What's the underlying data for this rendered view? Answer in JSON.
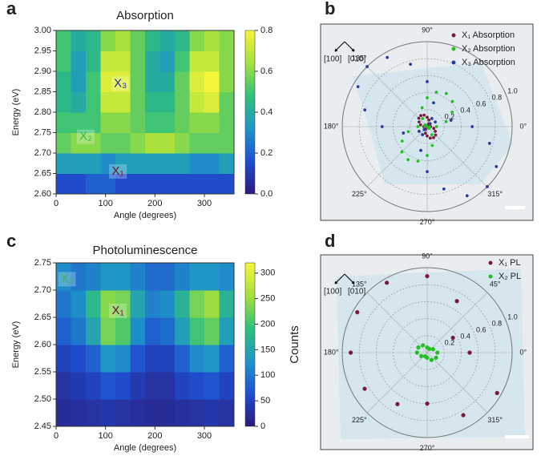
{
  "chart_data": [
    {
      "type": "heatmap",
      "panel_label": "a",
      "title": "Absorption",
      "xlabel": "Angle (degrees)",
      "ylabel": "Energy (eV)",
      "x": [
        15,
        45,
        75,
        105,
        135,
        165,
        195,
        225,
        255,
        285,
        315,
        345
      ],
      "y": [
        2.625,
        2.675,
        2.725,
        2.775,
        2.825,
        2.875,
        2.925,
        2.975
      ],
      "values": [
        [
          0.15,
          0.15,
          0.2,
          0.2,
          0.15,
          0.15,
          0.15,
          0.15,
          0.15,
          0.15,
          0.15,
          0.15
        ],
        [
          0.35,
          0.35,
          0.35,
          0.3,
          0.35,
          0.35,
          0.35,
          0.35,
          0.35,
          0.3,
          0.3,
          0.35
        ],
        [
          0.55,
          0.6,
          0.6,
          0.55,
          0.55,
          0.6,
          0.65,
          0.65,
          0.6,
          0.55,
          0.55,
          0.55
        ],
        [
          0.5,
          0.5,
          0.5,
          0.6,
          0.6,
          0.55,
          0.5,
          0.5,
          0.55,
          0.6,
          0.6,
          0.55
        ],
        [
          0.45,
          0.4,
          0.5,
          0.7,
          0.7,
          0.55,
          0.45,
          0.45,
          0.55,
          0.7,
          0.75,
          0.55
        ],
        [
          0.45,
          0.35,
          0.5,
          0.75,
          0.75,
          0.55,
          0.4,
          0.4,
          0.55,
          0.75,
          0.8,
          0.6
        ],
        [
          0.5,
          0.35,
          0.45,
          0.7,
          0.7,
          0.55,
          0.4,
          0.35,
          0.5,
          0.7,
          0.7,
          0.6
        ],
        [
          0.5,
          0.4,
          0.45,
          0.6,
          0.65,
          0.55,
          0.45,
          0.4,
          0.45,
          0.6,
          0.65,
          0.6
        ]
      ],
      "xlim": [
        0,
        360
      ],
      "xticks": [
        0,
        100,
        200,
        300
      ],
      "ylim": [
        2.6,
        3.0
      ],
      "yticks": [
        {
          "value": 2.6,
          "label": "2.60"
        },
        {
          "value": 2.65,
          "label": "2.65"
        },
        {
          "value": 2.7,
          "label": "2.70"
        },
        {
          "value": 2.75,
          "label": "2.75"
        },
        {
          "value": 2.8,
          "label": "2.80"
        },
        {
          "value": 2.85,
          "label": "2.85"
        },
        {
          "value": 2.9,
          "label": "2.90"
        },
        {
          "value": 2.95,
          "label": "2.95"
        },
        {
          "value": 3.0,
          "label": "3.00"
        }
      ],
      "colormap": [
        "#2b1a7a",
        "#1f4fd1",
        "#1f96c8",
        "#2fc07a",
        "#a6e03c",
        "#f5f53a"
      ],
      "clim": [
        0,
        0.8
      ],
      "cticks": [
        {
          "value": 0,
          "label": "0.0"
        },
        0.2,
        0.4,
        0.6,
        0.8
      ],
      "annotations": [
        {
          "text": "X₃",
          "x": 130,
          "y": 2.87,
          "color": "#2a2a8a"
        },
        {
          "text": "X₂",
          "x": 60,
          "y": 2.74,
          "color": "#3cb84a"
        },
        {
          "text": "X₁",
          "x": 125,
          "y": 2.655,
          "color": "#6a1030"
        }
      ]
    },
    {
      "type": "polar",
      "panel_label": "b",
      "direction_labels": [
        "[100]",
        "[010]"
      ],
      "theta": [
        0,
        15,
        30,
        45,
        60,
        75,
        90,
        105,
        120,
        135,
        150,
        165,
        180,
        195,
        210,
        225,
        240,
        255,
        270,
        285,
        300,
        315,
        330,
        345
      ],
      "series": [
        {
          "name": "X₁ Absorption",
          "color": "#7a1a3a",
          "values": [
            0.04,
            0.01,
            0,
            0.01,
            0.04,
            0.08,
            0.11,
            0.14,
            0.15,
            0.14,
            0.11,
            0.08,
            0.04,
            0.01,
            0,
            0.01,
            0.04,
            0.08,
            0.11,
            0.14,
            0.15,
            0.14,
            0.11,
            0.08
          ]
        },
        {
          "name": "X₂ Absorption",
          "color": "#22c022",
          "values": [
            0.11,
            0.23,
            0.34,
            0.42,
            0.45,
            0.42,
            0.34,
            0.23,
            0.11,
            0.03,
            0,
            0.03,
            0.11,
            0.23,
            0.34,
            0.42,
            0.45,
            0.42,
            0.34,
            0.23,
            0.11,
            0.03,
            0,
            0.03
          ]
        },
        {
          "name": "X₃ Absorption",
          "color": "#2a3c9a",
          "values": [
            0.53,
            0.29,
            0.11,
            0.05,
            0.11,
            0.29,
            0.53,
            0.76,
            0.94,
            1.0,
            0.94,
            0.76,
            0.53,
            0.29,
            0.11,
            0.05,
            0.11,
            0.29,
            0.53,
            0.76,
            0.94,
            1.0,
            0.94,
            0.76
          ]
        }
      ],
      "rlim": [
        0,
        1
      ],
      "rticks": [
        0.2,
        0.4,
        0.6,
        0.8,
        {
          "value": 1,
          "label": "1.0"
        }
      ],
      "angle_ticks": [
        {
          "value": 0,
          "label": "0°"
        },
        {
          "value": 90,
          "label": "90°"
        },
        {
          "value": 135,
          "label": "135°"
        },
        {
          "value": 180,
          "label": "180°"
        },
        {
          "value": 225,
          "label": "225°"
        },
        {
          "value": 270,
          "label": "270°"
        },
        {
          "value": 315,
          "label": "315°"
        }
      ]
    },
    {
      "type": "heatmap",
      "panel_label": "c",
      "title": "Photoluminescence",
      "xlabel": "Angle (degrees)",
      "ylabel": "Energy (eV)",
      "clabel": "Counts",
      "x": [
        15,
        45,
        75,
        105,
        135,
        165,
        195,
        225,
        255,
        285,
        315,
        345
      ],
      "y": [
        2.475,
        2.525,
        2.575,
        2.625,
        2.675,
        2.725
      ],
      "values": [
        [
          20,
          25,
          30,
          35,
          30,
          25,
          20,
          20,
          25,
          30,
          35,
          30
        ],
        [
          30,
          40,
          50,
          70,
          60,
          40,
          30,
          30,
          50,
          60,
          70,
          50
        ],
        [
          50,
          60,
          80,
          130,
          120,
          70,
          50,
          50,
          80,
          120,
          130,
          80
        ],
        [
          80,
          100,
          150,
          230,
          210,
          120,
          80,
          90,
          140,
          200,
          220,
          140
        ],
        [
          100,
          120,
          180,
          240,
          230,
          150,
          110,
          120,
          170,
          230,
          250,
          170
        ],
        [
          120,
          100,
          110,
          130,
          130,
          110,
          90,
          90,
          110,
          130,
          130,
          120
        ]
      ],
      "xlim": [
        0,
        360
      ],
      "xticks": [
        0,
        100,
        200,
        300
      ],
      "ylim": [
        2.45,
        2.75
      ],
      "yticks": [
        {
          "value": 2.45,
          "label": "2.45"
        },
        {
          "value": 2.5,
          "label": "2.50"
        },
        {
          "value": 2.55,
          "label": "2.55"
        },
        {
          "value": 2.6,
          "label": "2.60"
        },
        {
          "value": 2.65,
          "label": "2.65"
        },
        {
          "value": 2.7,
          "label": "2.70"
        },
        {
          "value": 2.75,
          "label": "2.75"
        }
      ],
      "colormap": [
        "#2b1a7a",
        "#1f4fd1",
        "#1f96c8",
        "#2fc07a",
        "#a6e03c",
        "#f5f53a"
      ],
      "clim": [
        0,
        320
      ],
      "cticks": [
        0,
        50,
        100,
        150,
        200,
        250,
        300
      ],
      "annotations": [
        {
          "text": "X₂",
          "x": 22,
          "y": 2.72,
          "color": "#3cb84a"
        },
        {
          "text": "X₁",
          "x": 125,
          "y": 2.662,
          "color": "#6a1030"
        }
      ]
    },
    {
      "type": "polar",
      "panel_label": "d",
      "direction_labels": [
        "[100]",
        "[010]"
      ],
      "theta": [
        0,
        30,
        60,
        90,
        120,
        150,
        180,
        210,
        240,
        270,
        300,
        330
      ],
      "series": [
        {
          "name": "X₁ PL",
          "color": "#7a1a3a",
          "values": [
            0.5,
            0.35,
            0.7,
            0.9,
            0.95,
            0.95,
            0.9,
            0.85,
            0.7,
            0.6,
            0.85,
            0.95
          ]
        },
        {
          "name": "X₂ PL",
          "color": "#22c022",
          "values": [
            0.12,
            0.08,
            0.05,
            0.06,
            0.1,
            0.12,
            0.12,
            0.08,
            0.05,
            0.06,
            0.1,
            0.12
          ]
        }
      ],
      "rlim": [
        0,
        1
      ],
      "rticks": [
        0.2,
        0.4,
        0.6,
        0.8,
        {
          "value": 1,
          "label": "1.0"
        }
      ],
      "angle_ticks": [
        {
          "value": 0,
          "label": "0°"
        },
        {
          "value": 45,
          "label": "45°"
        },
        {
          "value": 90,
          "label": "90°"
        },
        {
          "value": 135,
          "label": "135°"
        },
        {
          "value": 180,
          "label": "180°"
        },
        {
          "value": 225,
          "label": "225°"
        },
        {
          "value": 270,
          "label": "270°"
        },
        {
          "value": 315,
          "label": "315°"
        }
      ]
    }
  ]
}
